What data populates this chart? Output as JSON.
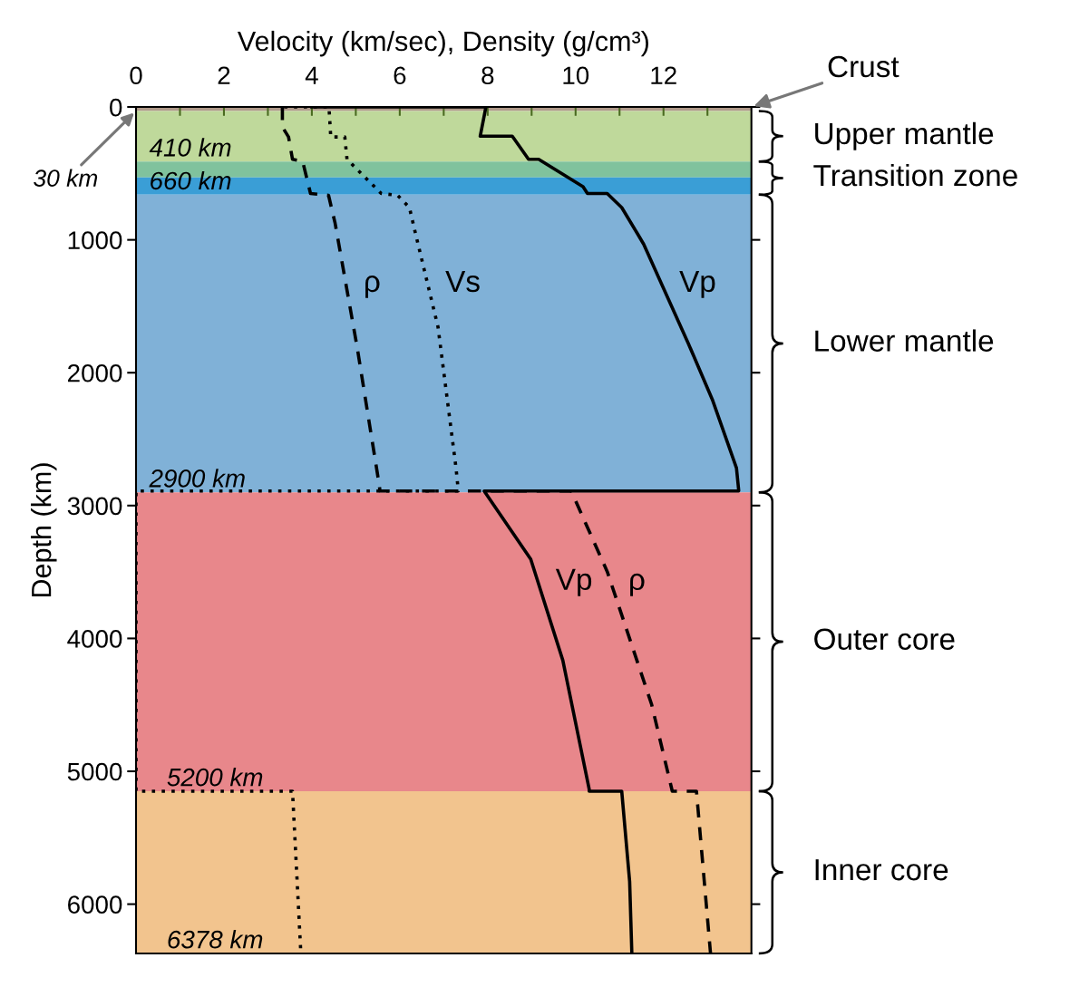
{
  "chart_data": {
    "type": "line",
    "orientation": "horizontal",
    "xlabel": "Velocity (km/sec), Density (g/cm³)",
    "ylabel": "Depth (km)",
    "xlim": [
      0,
      14
    ],
    "xticks": [
      0,
      {
        "value": 1,
        "label": null
      },
      2,
      {
        "value": 3,
        "label": null
      },
      4,
      {
        "value": 5,
        "label": null
      },
      6,
      {
        "value": 7,
        "label": null
      },
      8,
      {
        "value": 9,
        "label": null
      },
      10,
      {
        "value": 11,
        "label": null
      },
      12,
      {
        "value": 13,
        "label": null
      }
    ],
    "ylim": [
      6371,
      0
    ],
    "yticks": [
      0,
      1000,
      2000,
      3000,
      4000,
      5000,
      6000
    ],
    "grid": false,
    "series": [
      {
        "name": "Vp",
        "color": "#000000",
        "line_style": "solid",
        "x": [
          0,
          0,
          220,
          220,
          394,
          394,
          600,
          651,
          651,
          757,
          955,
          1033,
          1776,
          2201,
          2717,
          2883,
          2890,
          2890,
          3404,
          4165,
          5136,
          5150,
          5150,
          5830,
          6371
        ],
        "values": [
          4.0,
          7.96,
          7.83,
          8.56,
          8.93,
          9.16,
          10.17,
          10.27,
          10.72,
          11.05,
          11.41,
          11.55,
          12.56,
          13.11,
          13.66,
          13.71,
          13.71,
          7.92,
          8.98,
          9.71,
          10.31,
          10.31,
          11.05,
          11.23,
          11.28
        ]
      },
      {
        "name": "Vs",
        "color": "#000000",
        "line_style": "dotted",
        "x": [
          0,
          0,
          226,
          226,
          394,
          651,
          665,
          757,
          955,
          1655,
          2717,
          2883,
          2890,
          2890,
          5150,
          5150,
          6371
        ],
        "values": [
          3.37,
          4.39,
          4.43,
          4.75,
          4.8,
          5.58,
          5.95,
          6.22,
          6.36,
          6.87,
          7.28,
          7.33,
          7.33,
          0,
          0,
          3.56,
          3.75
        ]
      },
      {
        "name": "ρ",
        "color": "#000000",
        "line_style": "dashed",
        "x": [
          0,
          150,
          226,
          394,
          408,
          651,
          665,
          876,
          1807,
          2838,
          2890,
          2890,
          3497,
          4497,
          5150,
          5150,
          6371
        ],
        "values": [
          3.33,
          3.33,
          3.47,
          3.56,
          3.79,
          3.97,
          4.38,
          4.53,
          5.03,
          5.53,
          5.55,
          9.9,
          10.72,
          11.73,
          12.2,
          12.75,
          13.07
        ]
      }
    ],
    "bands": [
      {
        "axis": "y",
        "from": 0,
        "to": 30,
        "color": "#b09a8a",
        "label": "Crust"
      },
      {
        "axis": "y",
        "from": 30,
        "to": 410,
        "color": "#bfd99b",
        "label": "Upper mantle"
      },
      {
        "axis": "y",
        "from": 410,
        "to": 530,
        "color": "#80c29d",
        "label": "Transition zone"
      },
      {
        "axis": "y",
        "from": 530,
        "to": 660,
        "color": "#3a9ed6",
        "label": null
      },
      {
        "axis": "y",
        "from": 660,
        "to": 2900,
        "color": "#80b1d7",
        "label": "Lower mantle"
      },
      {
        "axis": "y",
        "from": 2900,
        "to": 5150,
        "color": "#e8878b",
        "label": "Outer core"
      },
      {
        "axis": "y",
        "from": 5150,
        "to": 6371,
        "color": "#f2c48e",
        "label": "Inner core"
      }
    ],
    "annotations": [
      {
        "text": "410 km",
        "x": 0.3,
        "y": 410
      },
      {
        "text": "660 km",
        "x": 0.3,
        "y": 660
      },
      {
        "text": "2900 km",
        "x": 0.3,
        "y": 2900
      },
      {
        "text": "5200 km",
        "x": 0.7,
        "y": 5150
      },
      {
        "text": "6378 km",
        "x": 0.7,
        "y": 6371
      },
      {
        "text": "30 km",
        "x": 0,
        "y": 30
      }
    ]
  }
}
